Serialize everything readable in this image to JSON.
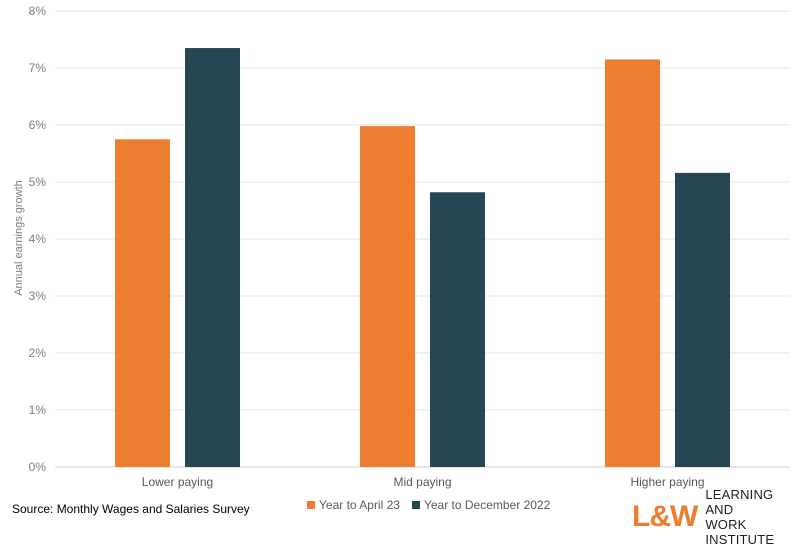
{
  "chart_data": {
    "type": "bar",
    "categories": [
      "Lower paying",
      "Mid paying",
      "Higher paying"
    ],
    "series": [
      {
        "name": "Year to April 23",
        "color": "#ed7d31",
        "values": [
          5.75,
          5.98,
          7.15
        ]
      },
      {
        "name": "Year to December 2022",
        "color": "#264653",
        "values": [
          7.35,
          4.82,
          5.16
        ]
      }
    ],
    "ylabel": "Annual earnings growth",
    "xlabel": "",
    "ylim": [
      0,
      8
    ],
    "yticks": [
      "0%",
      "1%",
      "2%",
      "3%",
      "4%",
      "5%",
      "6%",
      "7%",
      "8%"
    ],
    "grid": true,
    "legend_position": "bottom"
  },
  "source_text": "Source: Monthly Wages and Salaries Survey",
  "logo": {
    "mark": "L&W",
    "line1": "LEARNING AND",
    "line2": "WORK INSTITUTE"
  }
}
